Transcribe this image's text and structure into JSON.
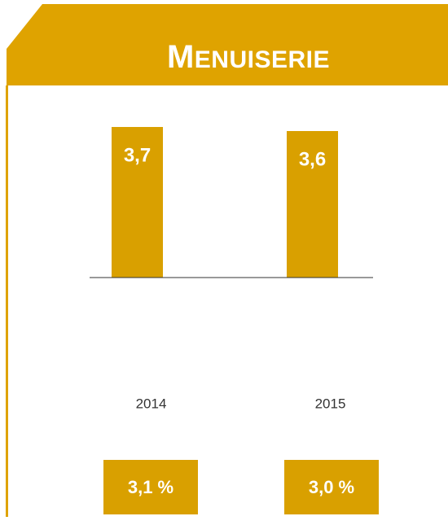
{
  "chart_data": {
    "type": "bar",
    "title": "MENUISERIE",
    "categories": [
      "2014",
      "2015"
    ],
    "values": [
      3.7,
      3.6
    ],
    "value_labels": [
      "3,7",
      "3,6"
    ],
    "color": "#d9a000",
    "annotations": [
      "3,1 %",
      "3,0 %"
    ]
  }
}
